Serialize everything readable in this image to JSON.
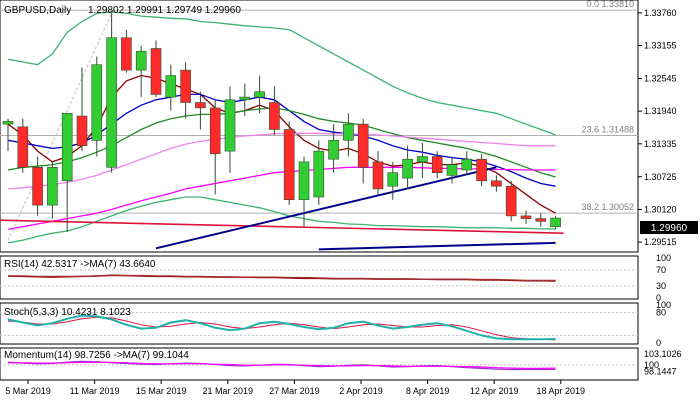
{
  "header": {
    "symbol": "GBPUSD,Daily",
    "ohlc": "1.29802 1.29991 1.29749 1.29960"
  },
  "price_badge": "1.29960",
  "chart_data": [
    {
      "type": "candlestick",
      "panel": "price",
      "ylim": [
        1.2935,
        1.3398
      ],
      "y_ticks": [
        "1.33760",
        "1.33155",
        "1.32545",
        "1.31940",
        "1.31335",
        "1.30725",
        "1.30120",
        "1.29515"
      ],
      "x_ticks": [
        "5 Mar 2019",
        "11 Mar 2019",
        "15 Mar 2019",
        "21 Mar 2019",
        "27 Mar 2019",
        "2 Apr 2019",
        "8 Apr 2019",
        "12 Apr 2019",
        "18 Apr 2019"
      ],
      "candles": [
        [
          1.317,
          1.318,
          1.312,
          1.3175
        ],
        [
          1.3165,
          1.318,
          1.308,
          1.309
        ],
        [
          1.309,
          1.311,
          1.3,
          1.302
        ],
        [
          1.302,
          1.31,
          1.2995,
          1.309
        ],
        [
          1.3065,
          1.319,
          1.297,
          1.319
        ],
        [
          1.3185,
          1.3275,
          1.312,
          1.313
        ],
        [
          1.314,
          1.3295,
          1.311,
          1.328
        ],
        [
          1.309,
          1.3375,
          1.308,
          1.333
        ],
        [
          1.333,
          1.3345,
          1.3265,
          1.327
        ],
        [
          1.327,
          1.3315,
          1.322,
          1.3305
        ],
        [
          1.331,
          1.3325,
          1.322,
          1.3225
        ],
        [
          1.322,
          1.328,
          1.3195,
          1.326
        ],
        [
          1.327,
          1.3285,
          1.318,
          1.321
        ],
        [
          1.321,
          1.323,
          1.316,
          1.32
        ],
        [
          1.32,
          1.3215,
          1.304,
          1.3115
        ],
        [
          1.312,
          1.324,
          1.308,
          1.3215
        ],
        [
          1.3215,
          1.3245,
          1.3185,
          1.322
        ],
        [
          1.322,
          1.326,
          1.319,
          1.323
        ],
        [
          1.321,
          1.324,
          1.315,
          1.316
        ],
        [
          1.316,
          1.3175,
          1.302,
          1.303
        ],
        [
          1.303,
          1.311,
          1.298,
          1.31
        ],
        [
          1.3035,
          1.314,
          1.302,
          1.312
        ],
        [
          1.3105,
          1.317,
          1.308,
          1.314
        ],
        [
          1.314,
          1.319,
          1.311,
          1.317
        ],
        [
          1.317,
          1.318,
          1.306,
          1.309
        ],
        [
          1.31,
          1.312,
          1.304,
          1.305
        ],
        [
          1.3055,
          1.31,
          1.303,
          1.308
        ],
        [
          1.307,
          1.313,
          1.305,
          1.3105
        ],
        [
          1.31,
          1.3135,
          1.307,
          1.311
        ],
        [
          1.311,
          1.312,
          1.307,
          1.308
        ],
        [
          1.3075,
          1.311,
          1.306,
          1.3095
        ],
        [
          1.3085,
          1.312,
          1.3075,
          1.3105
        ],
        [
          1.3105,
          1.3115,
          1.3055,
          1.3065
        ],
        [
          1.3065,
          1.3075,
          1.3045,
          1.3055
        ],
        [
          1.3055,
          1.3065,
          1.299,
          1.3
        ],
        [
          1.3,
          1.301,
          1.2985,
          1.2995
        ],
        [
          1.2995,
          1.3005,
          1.298,
          1.299
        ],
        [
          1.298,
          1.3,
          1.2975,
          1.2996
        ]
      ],
      "series": [
        {
          "color": "#8b0000",
          "values": [
            1.317,
            1.315,
            1.312,
            1.31,
            1.311,
            1.313,
            1.3165,
            1.322,
            1.325,
            1.326,
            1.3255,
            1.3245,
            1.3235,
            1.3225,
            1.32,
            1.319,
            1.3195,
            1.3205,
            1.3195,
            1.3165,
            1.314,
            1.3125,
            1.312,
            1.3125,
            1.3115,
            1.31,
            1.3092,
            1.3095,
            1.31,
            1.3095,
            1.3095,
            1.3098,
            1.3092,
            1.308,
            1.306,
            1.304,
            1.302,
            1.3005
          ]
        },
        {
          "color": "#0000cd",
          "values": [
            1.314,
            1.3135,
            1.313,
            1.3125,
            1.3128,
            1.3135,
            1.315,
            1.317,
            1.319,
            1.3205,
            1.3215,
            1.322,
            1.3225,
            1.3225,
            1.3215,
            1.321,
            1.3215,
            1.322,
            1.3215,
            1.3195,
            1.3175,
            1.316,
            1.3155,
            1.3152,
            1.3148,
            1.314,
            1.313,
            1.3122,
            1.3118,
            1.3112,
            1.3108,
            1.3105,
            1.31,
            1.3092,
            1.3082,
            1.307,
            1.306,
            1.3055
          ]
        },
        {
          "color": "#228b22",
          "values": [
            1.3085,
            1.309,
            1.3092,
            1.3095,
            1.31,
            1.3108,
            1.3118,
            1.313,
            1.3145,
            1.316,
            1.3172,
            1.318,
            1.3185,
            1.3188,
            1.3188,
            1.319,
            1.3195,
            1.3198,
            1.32,
            1.3195,
            1.3188,
            1.318,
            1.3175,
            1.3172,
            1.3168,
            1.316,
            1.3152,
            1.3145,
            1.314,
            1.3135,
            1.313,
            1.3125,
            1.3118,
            1.311,
            1.31,
            1.309,
            1.308,
            1.3072
          ]
        },
        {
          "color": "#ff00ff",
          "values": [
            1.2975,
            1.298,
            1.2985,
            1.299,
            1.2995,
            1.3,
            1.3005,
            1.3012,
            1.302,
            1.3028,
            1.3035,
            1.3042,
            1.305,
            1.3055,
            1.306,
            1.3065,
            1.307,
            1.3075,
            1.308,
            1.3082,
            1.3084,
            1.3086,
            1.3088,
            1.309,
            1.309,
            1.309,
            1.309,
            1.309,
            1.3089,
            1.3088,
            1.3088,
            1.3087,
            1.3087,
            1.3086,
            1.3086,
            1.3085,
            1.3085,
            1.3085
          ]
        },
        {
          "color": "#ee82ee",
          "values": [
            1.305,
            1.3052,
            1.3055,
            1.3058,
            1.3062,
            1.3068,
            1.3075,
            1.3085,
            1.3095,
            1.3105,
            1.3115,
            1.3125,
            1.3133,
            1.3138,
            1.3142,
            1.3145,
            1.3148,
            1.315,
            1.3152,
            1.3153,
            1.3153,
            1.3153,
            1.3152,
            1.3152,
            1.3151,
            1.315,
            1.3148,
            1.3146,
            1.3144,
            1.3142,
            1.314,
            1.3138,
            1.3136,
            1.3134,
            1.3132,
            1.313,
            1.313,
            1.313
          ]
        },
        {
          "color": "#3cb371",
          "values": [
            1.329,
            1.3285,
            1.328,
            1.33,
            1.334,
            1.336,
            1.3375,
            1.3378,
            1.3375,
            1.337,
            1.3368,
            1.3366,
            1.3365,
            1.336,
            1.3358,
            1.3355,
            1.3352,
            1.335,
            1.3348,
            1.3345,
            1.333,
            1.3315,
            1.33,
            1.3285,
            1.327,
            1.3255,
            1.324,
            1.3228,
            1.3218,
            1.321,
            1.3205,
            1.32,
            1.3195,
            1.319,
            1.318,
            1.317,
            1.316,
            1.315
          ]
        },
        {
          "color": "#3cb371",
          "values": [
            1.295,
            1.2955,
            1.2962,
            1.2968,
            1.2972,
            1.298,
            1.299,
            1.3,
            1.301,
            1.3018,
            1.3025,
            1.303,
            1.3035,
            1.3035,
            1.303,
            1.3025,
            1.302,
            1.3015,
            1.3008,
            1.3,
            1.2995,
            1.299,
            1.2988,
            1.2985,
            1.2984,
            1.2982,
            1.2982,
            1.2981,
            1.298,
            1.298,
            1.2979,
            1.2978,
            1.2978,
            1.2978,
            1.2977,
            1.2977,
            1.2976,
            1.2976
          ]
        }
      ],
      "fib_levels": [
        {
          "label": "0.0 1.33810",
          "value": 1.3381
        },
        {
          "label": "23.6 1.31488",
          "value": 1.31488
        },
        {
          "label": "38.2 1.30052",
          "value": 1.30052
        }
      ],
      "support_line": {
        "color": "#dc143c",
        "values": [
          1.2992,
          1.2968
        ]
      },
      "trendline": {
        "color": "#00008b",
        "points": [
          [
            10,
            1.294
          ],
          [
            33,
            1.309
          ]
        ]
      },
      "trendline_lower": {
        "color": "#00008b",
        "points": [
          [
            21,
            1.2938
          ],
          [
            37,
            1.295
          ]
        ]
      },
      "gray_channel": {
        "color": "#c0c0c0",
        "points": [
          [
            0,
            1.2955
          ],
          [
            7,
            1.3375
          ]
        ]
      }
    },
    {
      "type": "line",
      "panel": "rsi",
      "title": "RSI(14) 42.5317 ->MA(7) 43.6640",
      "ylim": [
        0,
        100
      ],
      "y_ticks": [
        "100",
        "70",
        "30",
        "0"
      ],
      "series": [
        {
          "color": "#8b0000",
          "values": [
            55,
            54,
            53,
            52,
            53,
            54,
            55,
            57,
            56,
            55,
            54,
            54,
            53,
            53,
            52,
            52,
            52,
            51,
            51,
            50,
            49,
            49,
            48,
            48,
            48,
            47,
            47,
            47,
            47,
            46,
            46,
            46,
            45,
            45,
            44,
            43,
            43,
            42.5
          ]
        },
        {
          "color": "#a52a2a",
          "values": [
            55,
            55,
            54,
            54,
            54,
            54,
            55,
            56,
            56,
            56,
            55,
            55,
            54,
            54,
            53,
            53,
            52,
            52,
            52,
            51,
            51,
            50,
            49,
            49,
            49,
            48,
            48,
            48,
            47,
            47,
            47,
            47,
            46,
            46,
            45,
            44,
            44,
            43.7
          ]
        }
      ]
    },
    {
      "type": "line",
      "panel": "stoch",
      "title": "Stoch(5,3,3) 10.4231 8.1023",
      "ylim": [
        0,
        100
      ],
      "y_ticks": [
        "100",
        "80",
        "0"
      ],
      "series": [
        {
          "color": "#20b2aa",
          "values": [
            62,
            54,
            46,
            52,
            64,
            72,
            70,
            62,
            48,
            38,
            40,
            54,
            60,
            52,
            40,
            34,
            38,
            52,
            56,
            50,
            42,
            36,
            40,
            52,
            56,
            46,
            38,
            42,
            48,
            52,
            44,
            32,
            20,
            12,
            10,
            10,
            10,
            10.4
          ]
        },
        {
          "color": "#dc143c",
          "values": [
            58,
            55,
            50,
            50,
            56,
            64,
            68,
            66,
            58,
            48,
            42,
            44,
            50,
            54,
            50,
            42,
            38,
            42,
            48,
            52,
            48,
            42,
            38,
            42,
            48,
            50,
            46,
            42,
            42,
            46,
            48,
            42,
            32,
            22,
            14,
            11,
            10,
            8.1
          ]
        }
      ]
    },
    {
      "type": "line",
      "panel": "momentum",
      "title": "Momentum(14) 98.7256 ->MA(7) 99.1044",
      "ylim": [
        96.0,
        104.5
      ],
      "y_ticks": [
        "103.1026",
        "100",
        "98.1447"
      ],
      "series": [
        {
          "color": "#9932cc",
          "values": [
            100.8,
            100.5,
            100.3,
            100.4,
            100.8,
            101.0,
            100.9,
            100.6,
            100.4,
            100.2,
            100.1,
            100.3,
            100.5,
            100.4,
            100.1,
            99.8,
            99.7,
            99.9,
            100.2,
            100.1,
            99.8,
            99.5,
            99.6,
            99.9,
            100.0,
            99.7,
            99.4,
            99.5,
            99.7,
            99.8,
            99.5,
            99.2,
            99.0,
            98.8,
            98.7,
            98.7,
            98.7,
            98.73
          ]
        },
        {
          "color": "#ff00ff",
          "values": [
            100.6,
            100.6,
            100.5,
            100.5,
            100.6,
            100.7,
            100.8,
            100.7,
            100.6,
            100.4,
            100.3,
            100.3,
            100.3,
            100.3,
            100.2,
            100.1,
            99.9,
            99.9,
            100.0,
            100.0,
            99.9,
            99.8,
            99.7,
            99.7,
            99.8,
            99.8,
            99.7,
            99.6,
            99.6,
            99.6,
            99.6,
            99.5,
            99.4,
            99.2,
            99.1,
            99.0,
            99.0,
            99.1
          ]
        }
      ]
    }
  ]
}
